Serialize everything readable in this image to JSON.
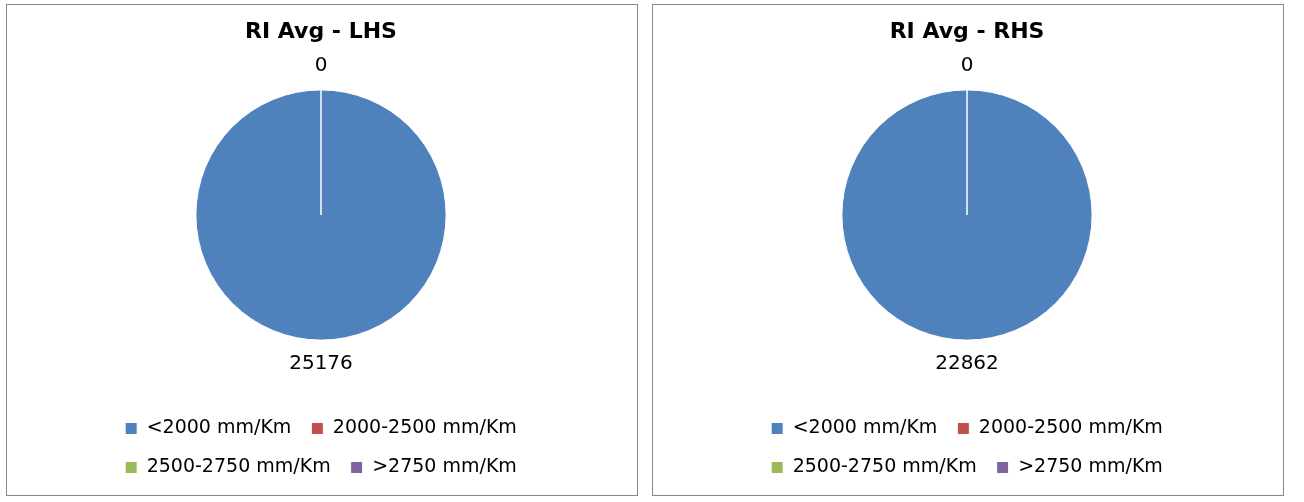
{
  "chart_data": [
    {
      "type": "pie",
      "title": "RI Avg - LHS",
      "categories": [
        "<2000 mm/Km",
        "2000-2500 mm/Km",
        "2500-2750 mm/Km",
        ">2750 mm/Km"
      ],
      "values": [
        25176,
        0,
        0,
        0
      ],
      "colors": [
        "#4f81bd",
        "#c0504d",
        "#9bbb59",
        "#8064a2"
      ],
      "value_labels": [
        "25176",
        "0",
        null,
        null
      ],
      "legend": "bottom"
    },
    {
      "type": "pie",
      "title": "RI Avg - RHS",
      "categories": [
        "<2000 mm/Km",
        "2000-2500 mm/Km",
        "2500-2750 mm/Km",
        ">2750 mm/Km"
      ],
      "values": [
        22862,
        0,
        0,
        0
      ],
      "colors": [
        "#4f81bd",
        "#c0504d",
        "#9bbb59",
        "#8064a2"
      ],
      "value_labels": [
        "22862",
        "0",
        null,
        null
      ],
      "legend": "bottom"
    }
  ]
}
